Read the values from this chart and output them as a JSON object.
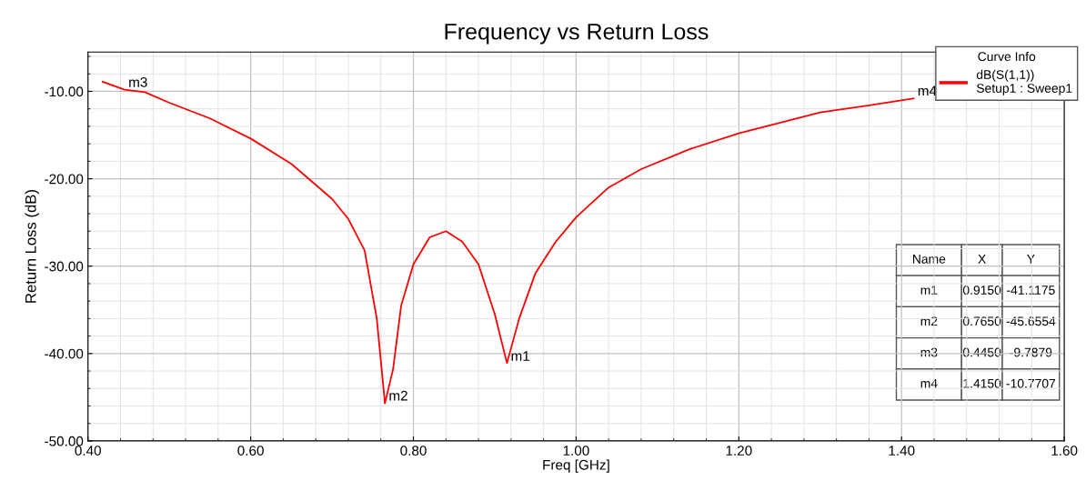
{
  "chart_data": {
    "type": "line",
    "title": "Frequency vs Return Loss",
    "xlabel": "Freq [GHz]",
    "ylabel": "Return Loss (dB)",
    "legend_title": "Curve Info",
    "legend": "top right",
    "grid": true,
    "xlim": [
      0.4,
      1.6
    ],
    "xticks": [
      {
        "value": 0.4,
        "label": "0.40"
      },
      {
        "value": 0.6,
        "label": "0.60"
      },
      {
        "value": 0.8,
        "label": "0.80"
      },
      {
        "value": 1.0,
        "label": "1.00"
      },
      {
        "value": 1.2,
        "label": "1.20"
      },
      {
        "value": 1.4,
        "label": "1.40"
      },
      {
        "value": 1.6,
        "label": "1.60"
      }
    ],
    "ylim": [
      -50,
      -5.5
    ],
    "yticks": [
      {
        "value": -50,
        "label": "-50.00"
      },
      {
        "value": -40,
        "label": "-40.00"
      },
      {
        "value": -30,
        "label": "-30.00"
      },
      {
        "value": -20,
        "label": "-20.00"
      },
      {
        "value": -10,
        "label": "-10.00"
      }
    ],
    "series": [
      {
        "name": "dB(S(1,1))\nSetup1 : Sweep1",
        "color": "#ff0000",
        "x": [
          0.418,
          0.445,
          0.47,
          0.5,
          0.55,
          0.6,
          0.65,
          0.7,
          0.72,
          0.74,
          0.755,
          0.765,
          0.775,
          0.785,
          0.8,
          0.82,
          0.84,
          0.86,
          0.88,
          0.9,
          0.915,
          0.93,
          0.95,
          0.975,
          1.0,
          1.04,
          1.08,
          1.14,
          1.2,
          1.3,
          1.36,
          1.415
        ],
        "values": [
          -8.9,
          -9.8,
          -10.1,
          -11.3,
          -13.1,
          -15.4,
          -18.3,
          -22.3,
          -24.6,
          -28.2,
          -36.0,
          -45.7,
          -41.8,
          -34.5,
          -29.8,
          -26.7,
          -26.0,
          -27.2,
          -29.8,
          -35.5,
          -41.1,
          -36.0,
          -30.8,
          -27.2,
          -24.4,
          -21.0,
          -18.9,
          -16.6,
          -14.8,
          -12.4,
          -11.6,
          -10.8
        ]
      }
    ],
    "annotations": [
      {
        "text": "m1",
        "x": 0.915,
        "y": -41.1175
      },
      {
        "text": "m2",
        "x": 0.765,
        "y": -45.6554
      },
      {
        "text": "m3",
        "x": 0.445,
        "y": -9.7879
      },
      {
        "text": "m4",
        "x": 1.415,
        "y": -10.7707
      },
      "Name",
      "X",
      "Y",
      "m1",
      "0.9150",
      "-41.1175",
      "m2",
      "0.7650",
      "-45.6554",
      "m3",
      "0.4450",
      "-9.7879",
      "m4",
      "1.4150",
      "-10.7707"
    ]
  }
}
